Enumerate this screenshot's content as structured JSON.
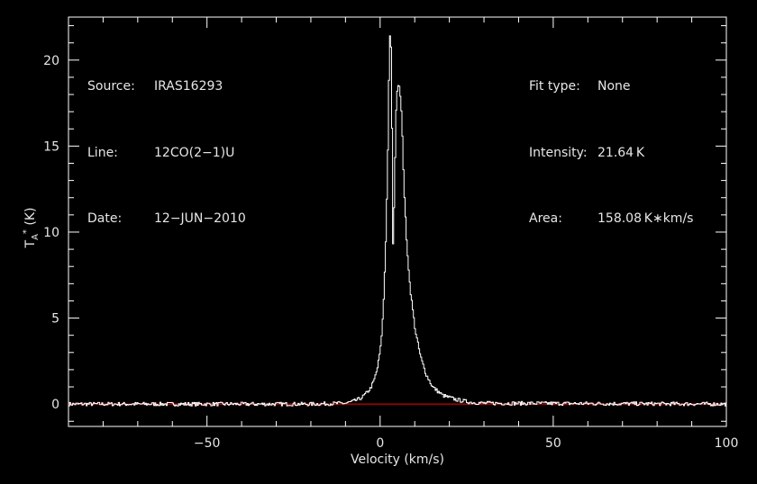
{
  "chart_data": {
    "type": "line",
    "xlabel": "Velocity (km/s)",
    "ylabel": "T_A^* (K)",
    "xlim": [
      -90,
      100
    ],
    "ylim": [
      -1.3,
      22.5
    ],
    "x_ticks": [
      -50,
      0,
      50,
      100
    ],
    "x_tick_labels": [
      "−50",
      "0",
      "50",
      "100"
    ],
    "y_ticks": [
      0,
      5,
      10,
      15,
      20
    ],
    "y_tick_labels": [
      "0",
      "5",
      "10",
      "15",
      "20"
    ],
    "grid": false,
    "colors": {
      "background": "#000000",
      "axes": "#ffffff",
      "spectrum": "#ffffff",
      "baseline": "#ff0000"
    },
    "baseline_y": 0,
    "series": [
      {
        "x": [
          -90,
          -20,
          -10,
          -8,
          -6,
          -5,
          -4,
          -3,
          -2,
          -1,
          -0.5,
          0,
          0.5,
          1,
          1.5,
          2,
          2.3,
          2.6,
          2.9,
          3.1,
          3.3,
          3.5,
          3.8,
          4.1,
          4.5,
          4.8,
          5.1,
          5.4,
          5.7,
          6.0,
          6.3,
          6.8,
          7.5,
          8.5,
          10,
          11.5,
          13,
          15,
          18,
          22,
          26,
          30,
          100
        ],
        "values": [
          0,
          0,
          0.05,
          0.15,
          0.3,
          0.45,
          0.65,
          0.9,
          1.3,
          2.0,
          2.6,
          3.3,
          4.5,
          6.5,
          9.5,
          13.5,
          17.5,
          21.2,
          21.6,
          20.0,
          16.0,
          8.6,
          10.5,
          13.5,
          17.0,
          18.3,
          18.6,
          18.5,
          18.0,
          17.0,
          15.5,
          12.5,
          9.5,
          6.8,
          4.3,
          2.8,
          1.8,
          1.0,
          0.5,
          0.25,
          0.1,
          0.05,
          0
        ]
      }
    ]
  },
  "annotations": {
    "source_label": "Source:",
    "source_value": "IRAS16293",
    "line_label": "Line:",
    "line_value": "12CO(2−1)U",
    "date_label": "Date:",
    "date_value": "12−JUN−2010",
    "fit_label": "Fit type:",
    "fit_value": "None",
    "intensity_label": "Intensity:",
    "intensity_value": "21.64 K",
    "area_label": "Area:",
    "area_value": "158.08 K∗km/s"
  }
}
